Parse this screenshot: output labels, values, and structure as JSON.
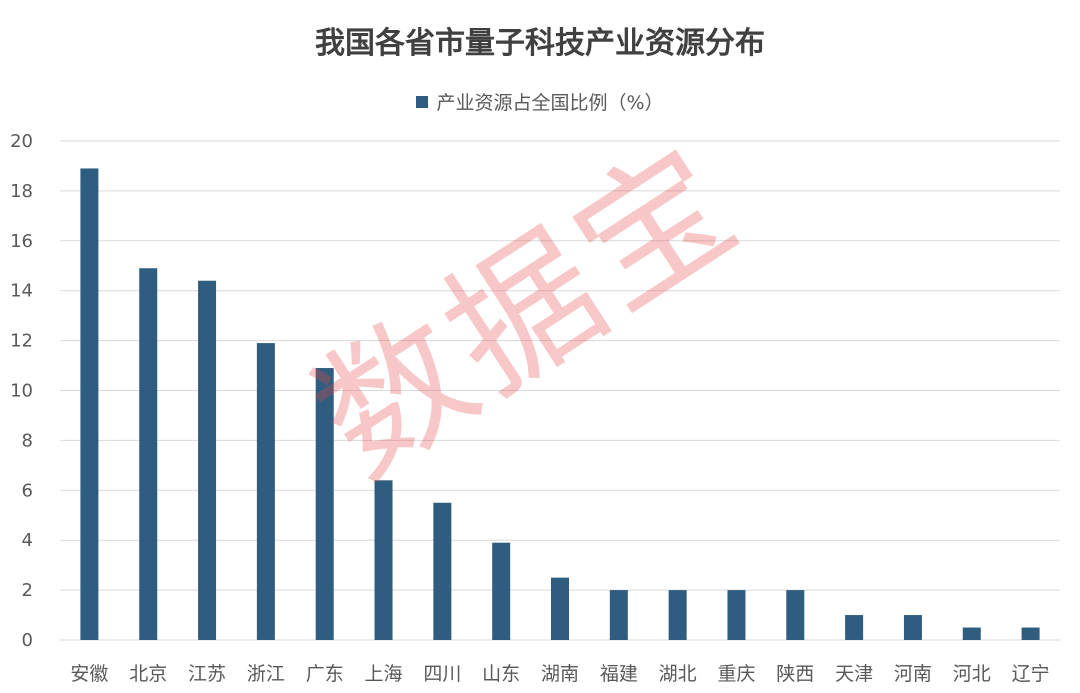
{
  "chart_data": {
    "type": "bar",
    "title": "我国各省市量子科技产业资源分布",
    "categories": [
      "安徽",
      "北京",
      "江苏",
      "浙江",
      "广东",
      "上海",
      "四川",
      "山东",
      "湖南",
      "福建",
      "湖北",
      "重庆",
      "陕西",
      "天津",
      "河南",
      "河北",
      "辽宁"
    ],
    "series": [
      {
        "name": "产业资源占全国比例（%）",
        "values": [
          18.9,
          14.9,
          14.4,
          11.9,
          10.9,
          6.4,
          5.5,
          3.9,
          2.5,
          2.0,
          2.0,
          2.0,
          2.0,
          1.0,
          1.0,
          0.5,
          0.5
        ]
      }
    ],
    "ylim": [
      0,
      20
    ],
    "yticks": [
      0,
      2,
      4,
      6,
      8,
      10,
      12,
      14,
      16,
      18,
      20
    ],
    "grid": true,
    "legend_position": "top",
    "colors": {
      "bar": "#2f5d7f",
      "grid": "#d9d9d9",
      "text": "#595959",
      "title": "#404040"
    }
  },
  "watermark": "数据宝"
}
